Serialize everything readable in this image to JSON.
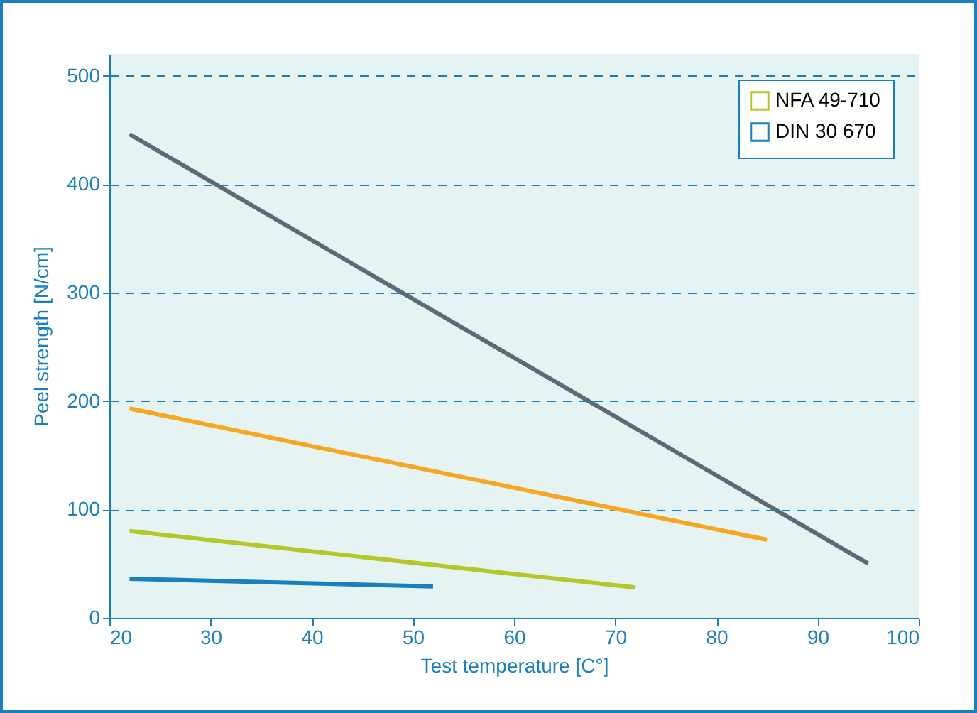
{
  "chart_data": {
    "type": "line",
    "xlabel": "Test temperature [C°]",
    "ylabel": "Peel strength [N/cm]",
    "xlim": [
      20,
      100
    ],
    "xticks": [
      20,
      30,
      40,
      50,
      60,
      70,
      80,
      90,
      100
    ],
    "ylim": [
      0,
      520
    ],
    "yticks": [
      0,
      100,
      200,
      300,
      400,
      500
    ],
    "grid": "y",
    "line_style": "solid",
    "legend": "top right",
    "series": [
      {
        "color": "#5a6b75",
        "x": [
          22,
          95
        ],
        "values": [
          446,
          50
        ]
      },
      {
        "color": "#f5a623",
        "x": [
          22,
          85
        ],
        "values": [
          193,
          72
        ]
      },
      {
        "name": "NFA 49-710",
        "color": "#b5c62b",
        "x": [
          22,
          72
        ],
        "values": [
          80,
          28
        ]
      },
      {
        "name": "DIN 30 670",
        "color": "#1a7fc1",
        "x": [
          22,
          52
        ],
        "values": [
          36,
          29
        ]
      }
    ]
  }
}
